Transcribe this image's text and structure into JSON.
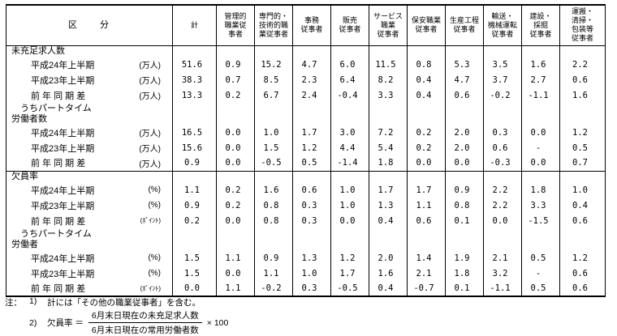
{
  "table": {
    "corner_label": "区　　分",
    "columns": [
      "計",
      "管理的\n職業従\n事者",
      "専門的・\n技術的職\n業従事者",
      "事務\n従事者",
      "販売\n従事者",
      "サービス\n職業\n従事者",
      "保安職業\n従事者",
      "生産工程\n従事者",
      "輸送・\n機械運転\n従事者",
      "建設・\n採掘\n従事者",
      "運搬・\n清掃・\n包装等\n従事者"
    ],
    "sections": [
      {
        "title": "未充足求人数",
        "tall": false,
        "divider": false,
        "rows": [
          {
            "label": "平成24年上半期",
            "unit": "(万人)",
            "small_unit": false,
            "values": [
              "51.6",
              "0.9",
              "15.2",
              "4.7",
              "6.0",
              "11.5",
              "0.8",
              "5.3",
              "3.5",
              "1.6",
              "2.2"
            ]
          },
          {
            "label": "平成23年上半期",
            "unit": "(万人)",
            "small_unit": false,
            "values": [
              "38.3",
              "0.7",
              "8.5",
              "2.3",
              "6.4",
              "8.2",
              "0.4",
              "4.7",
              "3.7",
              "2.7",
              "0.6"
            ]
          },
          {
            "label": "前 年 同 期 差",
            "unit": "(万人)",
            "small_unit": false,
            "values": [
              "13.3",
              "0.2",
              "6.7",
              "2.4",
              "-0.4",
              "3.3",
              "0.4",
              "0.6",
              "-0.2",
              "-1.1",
              "1.6"
            ]
          }
        ]
      },
      {
        "title": "　うちパートタイム\n労働者数",
        "tall": true,
        "divider": false,
        "rows": [
          {
            "label": "平成24年上半期",
            "unit": "(万人)",
            "small_unit": false,
            "values": [
              "16.5",
              "0.0",
              "1.0",
              "1.7",
              "3.0",
              "7.2",
              "0.2",
              "2.0",
              "0.3",
              "0.0",
              "1.2"
            ]
          },
          {
            "label": "平成23年上半期",
            "unit": "(万人)",
            "small_unit": false,
            "values": [
              "15.6",
              "0.0",
              "1.5",
              "1.2",
              "4.4",
              "5.4",
              "0.2",
              "2.0",
              "0.6",
              "-",
              "0.5"
            ]
          },
          {
            "label": "前 年 同 期 差",
            "unit": "(万人)",
            "small_unit": false,
            "values": [
              "0.9",
              "0.0",
              "-0.5",
              "0.5",
              "-1.4",
              "1.8",
              "0.0",
              "0.0",
              "-0.3",
              "0.0",
              "0.7"
            ]
          }
        ]
      },
      {
        "title": "欠員率",
        "tall": false,
        "divider": true,
        "rows": [
          {
            "label": "平成24年上半期",
            "unit": "(%)",
            "small_unit": false,
            "values": [
              "1.1",
              "0.2",
              "1.6",
              "0.6",
              "1.0",
              "1.7",
              "1.7",
              "0.9",
              "2.2",
              "1.8",
              "1.0"
            ]
          },
          {
            "label": "平成23年上半期",
            "unit": "(%)",
            "small_unit": false,
            "values": [
              "0.9",
              "0.2",
              "0.8",
              "0.3",
              "1.0",
              "1.3",
              "1.1",
              "0.8",
              "2.2",
              "3.3",
              "0.4"
            ]
          },
          {
            "label": "前 年 同 期 差",
            "unit": "(ﾎﾟｲﾝﾄ)",
            "small_unit": true,
            "values": [
              "0.2",
              "0.0",
              "0.8",
              "0.3",
              "0.0",
              "0.4",
              "0.6",
              "0.1",
              "0.0",
              "-1.5",
              "0.6"
            ]
          }
        ]
      },
      {
        "title": "　うちパートタイム\n労働者",
        "tall": true,
        "divider": false,
        "rows": [
          {
            "label": "平成24年上半期",
            "unit": "(%)",
            "small_unit": false,
            "values": [
              "1.5",
              "1.1",
              "0.9",
              "1.3",
              "1.2",
              "2.0",
              "1.4",
              "1.9",
              "2.1",
              "0.5",
              "1.2"
            ]
          },
          {
            "label": "平成23年上半期",
            "unit": "(%)",
            "small_unit": false,
            "values": [
              "1.5",
              "0.0",
              "1.1",
              "1.0",
              "1.7",
              "1.6",
              "2.1",
              "1.8",
              "3.2",
              "-",
              "0.6"
            ]
          },
          {
            "label": "前 年 同 期 差",
            "unit": "(ﾎﾟｲﾝﾄ)",
            "small_unit": true,
            "values": [
              "0.0",
              "1.1",
              "-0.2",
              "0.3",
              "-0.5",
              "0.4",
              "-0.7",
              "0.1",
              "-1.1",
              "0.5",
              "0.6"
            ]
          }
        ]
      }
    ]
  },
  "notes": {
    "prefix": "注：",
    "note1_num": "1)",
    "note1_text": "計には「その他の職業従事者」を含む。",
    "note2_num": "2)",
    "note2_lead": "欠員率 ＝",
    "note2_numerator": "6月末日現在の未充足求人数",
    "note2_denominator": "6月末日現在の常用労働者数",
    "note2_suffix": "× 100"
  }
}
